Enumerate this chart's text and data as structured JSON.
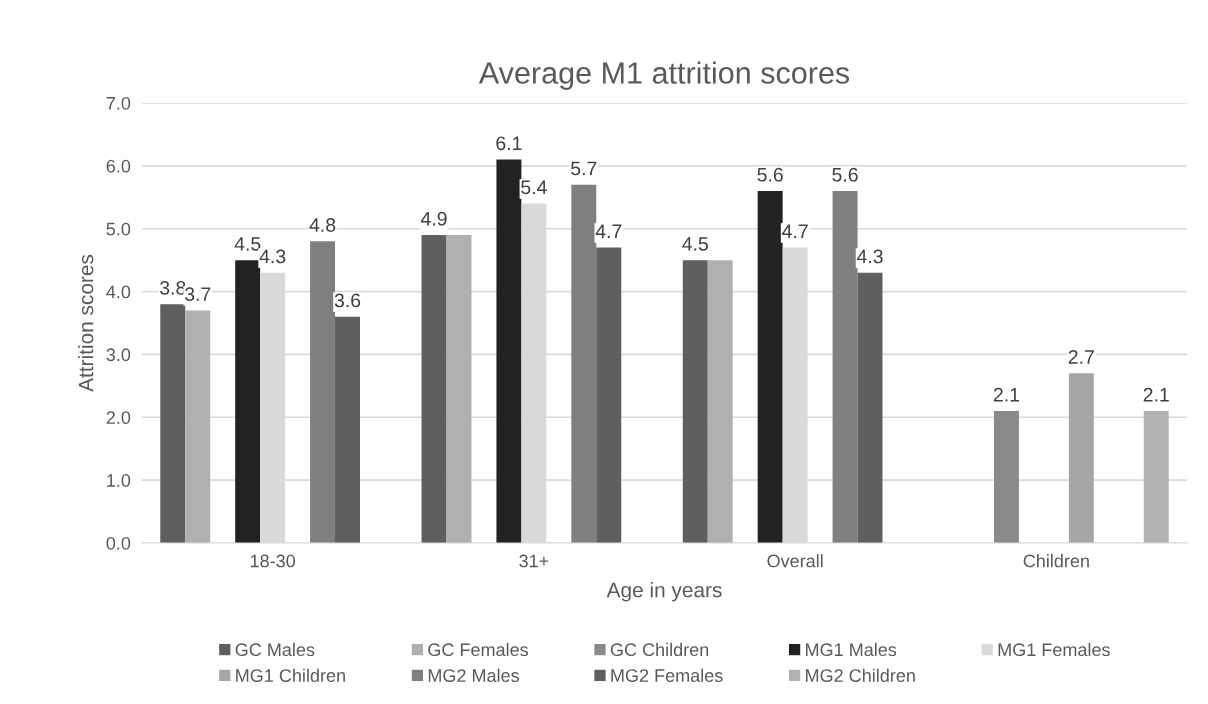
{
  "chart_data": {
    "type": "bar",
    "title": "Average M1 attrition scores",
    "xlabel": "Age in years",
    "ylabel": "Attrition scores",
    "categories": [
      "18-30",
      "31+",
      "Overall",
      "Children"
    ],
    "series": [
      {
        "name": "GC Males",
        "color": "#5f5f5f",
        "values": [
          3.8,
          4.9,
          4.5,
          null
        ],
        "value_labels": [
          "3.8",
          "4.9",
          "4.5",
          null
        ]
      },
      {
        "name": "GC Females",
        "color": "#b0b0b0",
        "values": [
          3.7,
          4.9,
          4.5,
          null
        ],
        "value_labels": [
          "3.7",
          null,
          null,
          null
        ]
      },
      {
        "name": "GC Children",
        "color": "#8a8a8a",
        "values": [
          null,
          null,
          null,
          2.1
        ],
        "value_labels": [
          null,
          null,
          null,
          "2.1"
        ]
      },
      {
        "name": "MG1 Males",
        "color": "#222222",
        "values": [
          4.5,
          6.1,
          5.6,
          null
        ],
        "value_labels": [
          "4.5",
          "6.1",
          "5.6",
          null
        ]
      },
      {
        "name": "MG1 Females",
        "color": "#d9d9d9",
        "values": [
          4.3,
          5.4,
          4.7,
          null
        ],
        "value_labels": [
          "4.3",
          "5.4",
          "4.7",
          null
        ]
      },
      {
        "name": "MG1 Children",
        "color": "#a6a6a6",
        "values": [
          null,
          null,
          null,
          2.7
        ],
        "value_labels": [
          null,
          null,
          null,
          "2.7"
        ]
      },
      {
        "name": "MG2 Males",
        "color": "#7f7f7f",
        "values": [
          4.8,
          5.7,
          5.6,
          null
        ],
        "value_labels": [
          "4.8",
          "5.7",
          "5.6",
          null
        ]
      },
      {
        "name": "MG2 Females",
        "color": "#5f5f5f",
        "values": [
          3.6,
          4.7,
          4.3,
          null
        ],
        "value_labels": [
          "3.6",
          "4.7",
          "4.3",
          null
        ]
      },
      {
        "name": "MG2 Children",
        "color": "#b2b2b2",
        "values": [
          null,
          null,
          null,
          2.1
        ],
        "value_labels": [
          null,
          null,
          null,
          "2.1"
        ]
      }
    ],
    "ylim": [
      0,
      7
    ],
    "yticks": [
      {
        "value": 0,
        "label": "0.0"
      },
      {
        "value": 1,
        "label": "1.0"
      },
      {
        "value": 2,
        "label": "2.0"
      },
      {
        "value": 3,
        "label": "3.0"
      },
      {
        "value": 4,
        "label": "4.0"
      },
      {
        "value": 5,
        "label": "5.0"
      },
      {
        "value": 6,
        "label": "6.0"
      },
      {
        "value": 7,
        "label": "7.0"
      }
    ],
    "grid": "y",
    "legend": "bottom"
  }
}
